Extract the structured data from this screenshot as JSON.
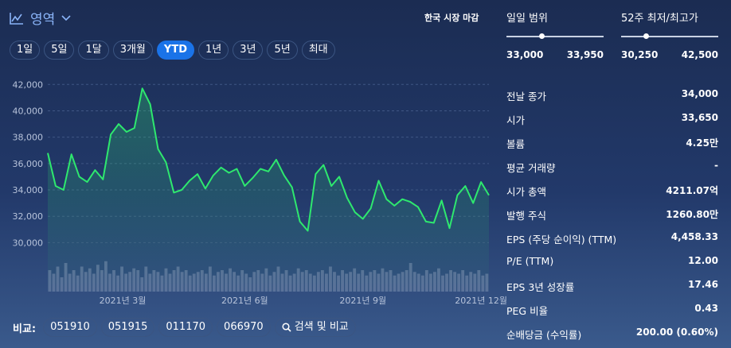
{
  "header": {
    "chart_type_label": "영역",
    "market_status": "한국 시장 마감"
  },
  "ranges": [
    {
      "label": "1일",
      "active": false
    },
    {
      "label": "5일",
      "active": false
    },
    {
      "label": "1달",
      "active": false
    },
    {
      "label": "3개월",
      "active": false
    },
    {
      "label": "YTD",
      "active": true
    },
    {
      "label": "1년",
      "active": false
    },
    {
      "label": "3년",
      "active": false
    },
    {
      "label": "5년",
      "active": false
    },
    {
      "label": "최대",
      "active": false
    }
  ],
  "colors": {
    "line": "#2ee86e",
    "accent": "#1a73e8",
    "volume": "#7d8db0"
  },
  "chart_data": {
    "type": "area",
    "ylim": [
      29000,
      42500
    ],
    "yticks": [
      "42,000",
      "40,000",
      "38,000",
      "36,000",
      "34,000",
      "32,000",
      "30,000"
    ],
    "ytick_values": [
      42000,
      40000,
      38000,
      36000,
      34000,
      32000,
      30000
    ],
    "xticks": [
      "2021년 3월",
      "2021년 6월",
      "2021년 9월",
      "2021년 12월"
    ],
    "xtick_positions": [
      1.9,
      5.0,
      8.0,
      11.0
    ],
    "series": [
      {
        "x": [
          0,
          0.2,
          0.4,
          0.6,
          0.8,
          1.0,
          1.2,
          1.4,
          1.6,
          1.8,
          2.0,
          2.2,
          2.4,
          2.6,
          2.8,
          3.0,
          3.2,
          3.4,
          3.6,
          3.8,
          4.0,
          4.2,
          4.4,
          4.6,
          4.8,
          5.0,
          5.2,
          5.4,
          5.6,
          5.8,
          6.0,
          6.2,
          6.4,
          6.6,
          6.8,
          7.0,
          7.2,
          7.4,
          7.6,
          7.8,
          8.0,
          8.2,
          8.4,
          8.6,
          8.8,
          9.0,
          9.2,
          9.4,
          9.6,
          9.8,
          10.0,
          10.2,
          10.4,
          10.6,
          10.8,
          11.0,
          11.2
        ],
        "y": [
          36800,
          34300,
          34000,
          36700,
          35000,
          34600,
          35500,
          34800,
          38200,
          39000,
          38400,
          38700,
          41700,
          40500,
          37100,
          36100,
          33800,
          34000,
          34700,
          35200,
          34100,
          35100,
          35700,
          35300,
          35600,
          34300,
          34900,
          35600,
          35400,
          36300,
          35100,
          34200,
          31600,
          30900,
          35200,
          35900,
          34300,
          35000,
          33400,
          32300,
          31800,
          32600,
          34700,
          33300,
          32800,
          33300,
          33100,
          32700,
          31600,
          31500,
          33200,
          31100,
          33600,
          34300,
          33000,
          34600,
          33600
        ]
      }
    ],
    "volume": [
      0.6,
      0.5,
      0.7,
      0.4,
      0.8,
      0.5,
      0.6,
      0.45,
      0.7,
      0.55,
      0.65,
      0.5,
      0.75,
      0.6,
      0.85,
      0.5,
      0.6,
      0.45,
      0.7,
      0.5,
      0.55,
      0.65,
      0.6,
      0.4,
      0.7,
      0.5,
      0.6,
      0.55,
      0.45,
      0.65,
      0.5,
      0.6,
      0.7,
      0.55,
      0.6,
      0.45,
      0.5,
      0.55,
      0.6,
      0.5,
      0.7,
      0.45,
      0.55,
      0.6,
      0.5,
      0.65,
      0.55,
      0.45,
      0.6,
      0.5,
      0.4,
      0.55,
      0.6,
      0.5,
      0.65,
      0.45,
      0.55,
      0.7,
      0.5,
      0.6,
      0.45,
      0.5,
      0.65,
      0.55,
      0.6,
      0.5,
      0.45,
      0.55,
      0.6,
      0.5,
      0.7,
      0.55,
      0.45,
      0.6,
      0.5,
      0.55,
      0.65,
      0.5,
      0.6,
      0.45,
      0.55,
      0.6,
      0.5,
      0.65,
      0.55,
      0.6,
      0.45,
      0.5,
      0.55,
      0.6,
      0.8,
      0.55,
      0.5,
      0.45,
      0.6,
      0.5,
      0.55,
      0.65,
      0.45,
      0.5,
      0.6,
      0.55,
      0.5,
      0.6,
      0.45,
      0.55,
      0.5,
      0.6,
      0.45,
      0.5
    ]
  },
  "compare": {
    "label": "비교:",
    "tickers": [
      "051910",
      "051915",
      "011170",
      "066970"
    ],
    "search_label": "검색 및 비교"
  },
  "stats": {
    "day_range": {
      "title": "일일 범위",
      "low": "33,000",
      "high": "33,950",
      "marker": 0.36
    },
    "week52_range": {
      "title": "52주 최저/최고가",
      "low": "30,250",
      "high": "42,500",
      "marker": 0.25
    },
    "rows": [
      {
        "label": "전날 종가",
        "value": "34,000"
      },
      {
        "label": "시가",
        "value": "33,650"
      },
      {
        "label": "볼륨",
        "value": "4.25만"
      },
      {
        "label": "평균 거래량",
        "value": "-"
      },
      {
        "label": "시가 총액",
        "value": "4211.07억"
      },
      {
        "label": "발행 주식",
        "value": "1260.80만"
      },
      {
        "label": "EPS (주당 순이익) (TTM)",
        "value": "4,458.33"
      },
      {
        "label": "P/E (TTM)",
        "value": "12.00"
      },
      {
        "label": "EPS 3년 성장률",
        "value": "17.46"
      },
      {
        "label": "PEG 비율",
        "value": "0.43"
      },
      {
        "label": "순배당금 (수익률)",
        "value": "200.00 (0.60%)"
      }
    ]
  }
}
